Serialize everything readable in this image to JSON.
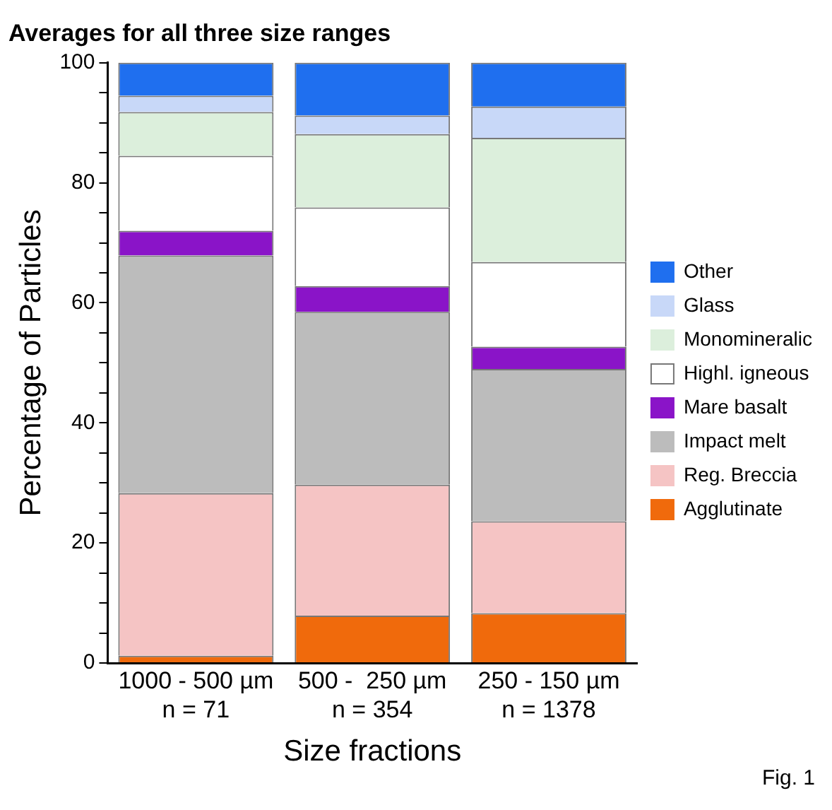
{
  "chart_data": {
    "type": "bar",
    "stacked": true,
    "title": "Averages for all three size ranges",
    "xlabel": "Size fractions",
    "ylabel": "Percentage of Particles",
    "categories": [
      "1000 - 500 µm\nn = 71",
      "500 -  250 µm\nn = 354",
      "250 - 150 µm\nn = 1378"
    ],
    "series": [
      {
        "name": "Agglutinate",
        "color": "#f06a0c",
        "values": [
          1.2,
          7.9,
          8.3
        ]
      },
      {
        "name": "Reg. Breccia",
        "color": "#f5c4c4",
        "values": [
          27.1,
          21.8,
          15.3
        ]
      },
      {
        "name": "Impact melt",
        "color": "#bcbcbc",
        "values": [
          39.6,
          28.8,
          25.4
        ]
      },
      {
        "name": "Mare basalt",
        "color": "#8a14c8",
        "values": [
          4.1,
          4.3,
          3.7
        ]
      },
      {
        "name": "Highl. igneous",
        "color": "#ffffff",
        "values": [
          12.5,
          13.1,
          14.1
        ]
      },
      {
        "name": "Monomineralic",
        "color": "#dcefdc",
        "values": [
          7.3,
          12.2,
          20.7
        ]
      },
      {
        "name": "Glass",
        "color": "#c8d8f8",
        "values": [
          2.7,
          3.1,
          5.2
        ]
      },
      {
        "name": "Other",
        "color": "#1f6fef",
        "values": [
          5.5,
          8.8,
          7.3
        ]
      }
    ],
    "ylim": [
      0,
      100
    ],
    "yticks": [
      0,
      {
        "value": 5,
        "label": null
      },
      {
        "value": 10,
        "label": null
      },
      {
        "value": 15,
        "label": null
      },
      20,
      {
        "value": 25,
        "label": null
      },
      {
        "value": 30,
        "label": null
      },
      {
        "value": 35,
        "label": null
      },
      40,
      {
        "value": 45,
        "label": null
      },
      {
        "value": 50,
        "label": null
      },
      {
        "value": 55,
        "label": null
      },
      60,
      {
        "value": 65,
        "label": null
      },
      {
        "value": 70,
        "label": null
      },
      {
        "value": 75,
        "label": null
      },
      80,
      {
        "value": 85,
        "label": null
      },
      {
        "value": 90,
        "label": null
      },
      {
        "value": 95,
        "label": null
      },
      100
    ],
    "grid": false,
    "legend": "right",
    "annotations": [
      "Fig. 1"
    ]
  }
}
